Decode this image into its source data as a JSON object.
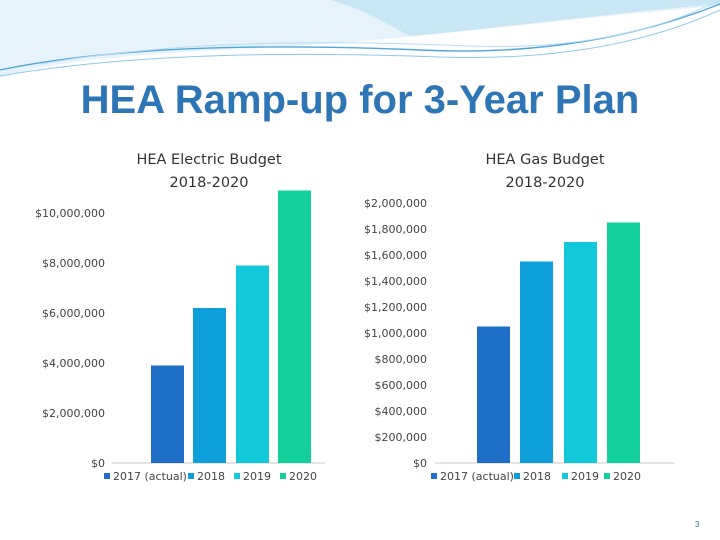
{
  "slide": {
    "title": "HEA Ramp-up for 3-Year Plan",
    "page_number": "3",
    "accent_color": "#2E75B6"
  },
  "chart_data": [
    {
      "type": "bar",
      "title": [
        "HEA Electric Budget",
        "2018-2020"
      ],
      "categories": [
        "2017 (actual)",
        "2018",
        "2019",
        "2020"
      ],
      "values": [
        3900000,
        6200000,
        7900000,
        10900000
      ],
      "colors": [
        "#1F6FC8",
        "#0E9FDB",
        "#12C8DA",
        "#13CF9C"
      ],
      "ylim": [
        0,
        10000000
      ],
      "yticks": [
        {
          "value": 0,
          "label": "$0"
        },
        {
          "value": 2000000,
          "label": "$2,000,000"
        },
        {
          "value": 4000000,
          "label": "$4,000,000"
        },
        {
          "value": 6000000,
          "label": "$6,000,000"
        },
        {
          "value": 8000000,
          "label": "$8,000,000"
        },
        {
          "value": 10000000,
          "label": "$10,000,000"
        }
      ],
      "xlabel": "",
      "ylabel": "",
      "grid": false,
      "legend": "bottom"
    },
    {
      "type": "bar",
      "title": [
        "HEA Gas Budget",
        "2018-2020"
      ],
      "categories": [
        "2017 (actual)",
        "2018",
        "2019",
        "2020"
      ],
      "values": [
        1050000,
        1550000,
        1700000,
        1850000
      ],
      "colors": [
        "#1F6FC8",
        "#0E9FDB",
        "#12C8DA",
        "#13CF9C"
      ],
      "ylim": [
        0,
        2000000
      ],
      "yticks": [
        {
          "value": 0,
          "label": "$0"
        },
        {
          "value": 200000,
          "label": "$200,000"
        },
        {
          "value": 400000,
          "label": "$400,000"
        },
        {
          "value": 600000,
          "label": "$600,000"
        },
        {
          "value": 800000,
          "label": "$800,000"
        },
        {
          "value": 1000000,
          "label": "$1,000,000"
        },
        {
          "value": 1200000,
          "label": "$1,200,000"
        },
        {
          "value": 1400000,
          "label": "$1,400,000"
        },
        {
          "value": 1600000,
          "label": "$1,600,000"
        },
        {
          "value": 1800000,
          "label": "$1,800,000"
        },
        {
          "value": 2000000,
          "label": "$2,000,000"
        }
      ],
      "xlabel": "",
      "ylabel": "",
      "grid": false,
      "legend": "bottom"
    }
  ]
}
